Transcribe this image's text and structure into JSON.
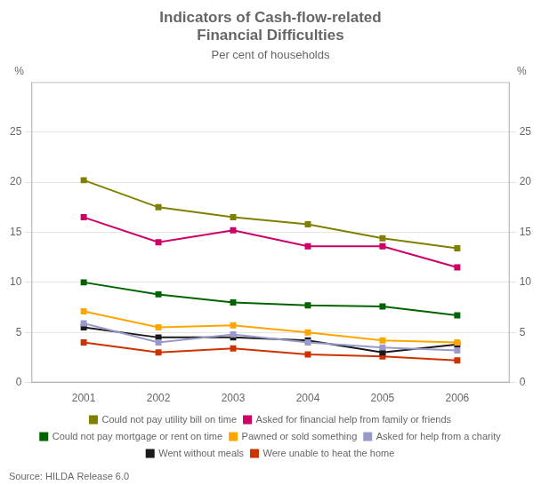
{
  "chart_data": {
    "type": "line",
    "title": "Indicators of Cash-flow-related\nFinancial Difficulties",
    "subtitle": "Per cent of households",
    "source": "Source: HILDA Release 6.0",
    "ylabel": "%",
    "y2label": "%",
    "x": [
      2001,
      2002,
      2003,
      2004,
      2005,
      2006
    ],
    "xlim": [
      2000.3,
      2006.7
    ],
    "xticks": [
      2001,
      2002,
      2003,
      2004,
      2005,
      2006
    ],
    "ylim": [
      0,
      30
    ],
    "yticks": [
      0,
      5,
      10,
      15,
      20,
      25
    ],
    "y2lim": [
      0,
      30
    ],
    "y2ticks": [
      0,
      5,
      10,
      15,
      20,
      25
    ],
    "grid": "y",
    "legend": "bottom",
    "series": [
      {
        "name": "Could not pay utility bill on time",
        "color": "#808000",
        "marker": "square",
        "values": [
          20.2,
          17.5,
          16.5,
          15.8,
          14.4,
          13.4
        ]
      },
      {
        "name": "Asked for financial help from family or friends",
        "color": "#CC0066",
        "marker": "square",
        "values": [
          16.5,
          14.0,
          15.2,
          13.6,
          13.6,
          11.5
        ]
      },
      {
        "name": "Could not pay mortgage or rent on time",
        "color": "#006400",
        "marker": "square",
        "values": [
          10.0,
          8.8,
          8.0,
          7.7,
          7.6,
          6.7
        ]
      },
      {
        "name": "Pawned or sold something",
        "color": "#FFA500",
        "marker": "square",
        "values": [
          7.1,
          5.5,
          5.7,
          5.0,
          4.2,
          4.0
        ]
      },
      {
        "name": "Asked for help from a charity",
        "color": "#9999CC",
        "marker": "square",
        "values": [
          5.9,
          4.0,
          4.8,
          4.0,
          3.5,
          3.2
        ]
      },
      {
        "name": "Went without meals",
        "color": "#1a1a1a",
        "marker": "square",
        "values": [
          5.5,
          4.5,
          4.5,
          4.2,
          3.0,
          3.8
        ]
      },
      {
        "name": "Were unable to heat the home",
        "color": "#CC3300",
        "marker": "square",
        "values": [
          4.0,
          3.0,
          3.4,
          2.8,
          2.6,
          2.2
        ]
      }
    ]
  }
}
